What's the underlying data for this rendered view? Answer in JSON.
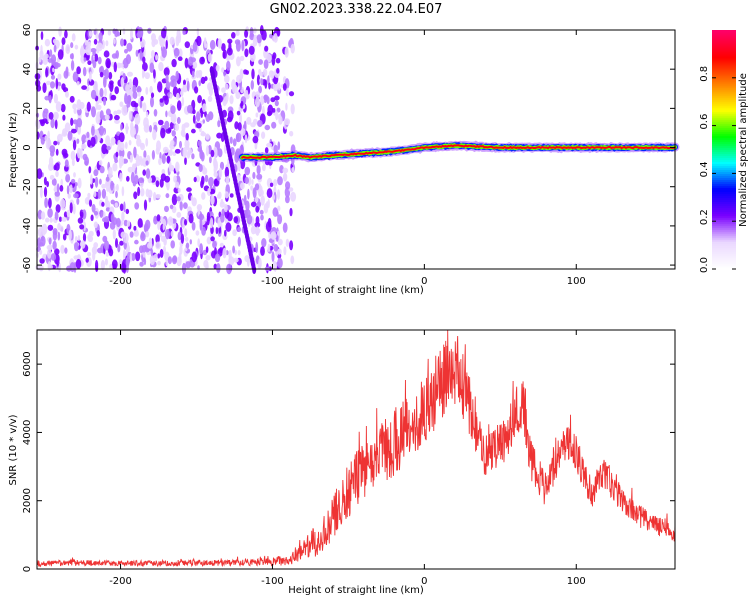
{
  "title": "GN02.2023.338.22.04.E07",
  "chart_data": [
    {
      "type": "heatmap",
      "title": "",
      "xlabel": "Height of straight line (km)",
      "ylabel": "Frequency (Hz)",
      "xlim": [
        -255,
        165
      ],
      "ylim": [
        -62,
        60
      ],
      "x_ticks": [
        -200,
        -100,
        0,
        100
      ],
      "y_ticks": [
        60,
        40,
        20,
        0,
        -20,
        -40,
        -60
      ],
      "colorbar": {
        "label": "Normalized spectral amplitude",
        "range": [
          0.0,
          1.0
        ],
        "ticks": [
          0.0,
          0.2,
          0.4,
          0.6,
          0.8
        ],
        "colors": [
          "#ffffff",
          "#ead7ff",
          "#7a00ff",
          "#0000ff",
          "#00ffff",
          "#00ff00",
          "#ffff00",
          "#ff8000",
          "#ff0000",
          "#ff0066"
        ]
      },
      "regions": {
        "noise_x_range": [
          -255,
          -85
        ],
        "noise_level": 0.12,
        "signal_line": [
          {
            "x": -120,
            "y": -5,
            "v": 0.15
          },
          {
            "x": -100,
            "y": -5,
            "v": 0.3
          },
          {
            "x": -85,
            "y": -4,
            "v": 0.4
          },
          {
            "x": -75,
            "y": -5,
            "v": 0.8
          },
          {
            "x": -60,
            "y": -4,
            "v": 0.85
          },
          {
            "x": -40,
            "y": -3,
            "v": 0.9
          },
          {
            "x": -20,
            "y": -2,
            "v": 0.9
          },
          {
            "x": 0,
            "y": 0,
            "v": 0.95
          },
          {
            "x": 20,
            "y": 1,
            "v": 0.95
          },
          {
            "x": 50,
            "y": 0,
            "v": 0.95
          },
          {
            "x": 80,
            "y": 0,
            "v": 0.95
          },
          {
            "x": 110,
            "y": 0,
            "v": 0.95
          },
          {
            "x": 140,
            "y": 0,
            "v": 0.95
          },
          {
            "x": 165,
            "y": 0,
            "v": 0.95
          }
        ]
      }
    },
    {
      "type": "line",
      "title": "",
      "xlabel": "Height of straight line (km)",
      "ylabel": "SNR (10 * v/v)",
      "xlim": [
        -255,
        165
      ],
      "ylim": [
        0,
        7000
      ],
      "x_ticks": [
        -200,
        -100,
        0,
        100
      ],
      "y_ticks": [
        0,
        2000,
        4000,
        6000
      ],
      "color": "#ee3333",
      "series": [
        {
          "x": [
            -255,
            -230,
            -200,
            -170,
            -140,
            -110,
            -90,
            -80,
            -70,
            -60,
            -50,
            -40,
            -30,
            -20,
            -10,
            0,
            10,
            15,
            20,
            30,
            40,
            50,
            60,
            65,
            70,
            80,
            90,
            95,
            100,
            110,
            118,
            125,
            140,
            150,
            165
          ],
          "values": [
            150,
            180,
            160,
            170,
            180,
            200,
            250,
            500,
            900,
            1500,
            2300,
            2900,
            3300,
            3700,
            4100,
            4600,
            5300,
            5800,
            5900,
            4800,
            3200,
            3600,
            4500,
            4800,
            3200,
            2300,
            3500,
            3700,
            3400,
            2200,
            2800,
            2300,
            1600,
            1300,
            1100
          ],
          "amplitude": [
            80,
            90,
            80,
            90,
            90,
            100,
            150,
            300,
            500,
            700,
            800,
            900,
            900,
            1000,
            1000,
            1000,
            1100,
            1100,
            1100,
            900,
            700,
            700,
            800,
            800,
            600,
            500,
            500,
            500,
            500,
            450,
            450,
            400,
            350,
            300,
            300
          ]
        }
      ]
    }
  ]
}
